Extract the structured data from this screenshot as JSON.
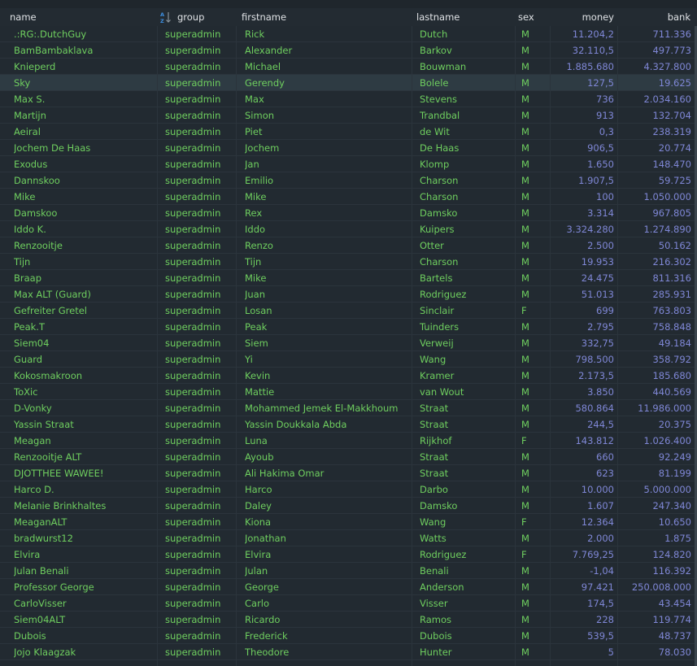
{
  "columns": {
    "name": "name",
    "group": "group",
    "firstname": "firstname",
    "lastname": "lastname",
    "sex": "sex",
    "money": "money",
    "bank": "bank"
  },
  "sort": {
    "column": "group",
    "icon": "sort-alpha-ascending-icon"
  },
  "colors": {
    "text": "#6fcf5f",
    "number": "#7f87d6",
    "background": "#222a31",
    "selected_row": "#2e3b43"
  },
  "selected_index": 3,
  "rows": [
    [
      ".:RG:.DutchGuy",
      "superadmin",
      "Rick",
      "Dutch",
      "M",
      "11.204,2",
      "711.336"
    ],
    [
      "BamBambaklava",
      "superadmin",
      "Alexander",
      "Barkov",
      "M",
      "32.110,5",
      "497.773"
    ],
    [
      "Knieperd",
      "superadmin",
      "Michael",
      "Bouwman",
      "M",
      "1.885.680",
      "4.327.800"
    ],
    [
      "Sky",
      "superadmin",
      "Gerendy",
      "Bolele",
      "M",
      "127,5",
      "19.625"
    ],
    [
      "Max S.",
      "superadmin",
      "Max",
      "Stevens",
      "M",
      "736",
      "2.034.160"
    ],
    [
      "Martijn",
      "superadmin",
      "Simon",
      "Trandbal",
      "M",
      "913",
      "132.704"
    ],
    [
      "Aeiral",
      "superadmin",
      "Piet",
      "de Wit",
      "M",
      "0,3",
      "238.319"
    ],
    [
      "Jochem De Haas",
      "superadmin",
      "Jochem",
      "De Haas",
      "M",
      "906,5",
      "20.774"
    ],
    [
      "Exodus",
      "superadmin",
      "Jan",
      "Klomp",
      "M",
      "1.650",
      "148.470"
    ],
    [
      "Dannskoo",
      "superadmin",
      "Emilio",
      "Charson",
      "M",
      "1.907,5",
      "59.725"
    ],
    [
      "Mike",
      "superadmin",
      "Mike",
      "Charson",
      "M",
      "100",
      "1.050.000"
    ],
    [
      "Damskoo",
      "superadmin",
      "Rex",
      "Damsko",
      "M",
      "3.314",
      "967.805"
    ],
    [
      "Iddo K.",
      "superadmin",
      "Iddo",
      "Kuipers",
      "M",
      "3.324.280",
      "1.274.890"
    ],
    [
      "Renzooitje",
      "superadmin",
      "Renzo",
      "Otter",
      "M",
      "2.500",
      "50.162"
    ],
    [
      "Tijn",
      "superadmin",
      "Tijn",
      "Charson",
      "M",
      "19.953",
      "216.302"
    ],
    [
      "Braap",
      "superadmin",
      "Mike",
      "Bartels",
      "M",
      "24.475",
      "811.316"
    ],
    [
      "Max ALT (Guard)",
      "superadmin",
      "Juan",
      "Rodriguez",
      "M",
      "51.013",
      "285.931"
    ],
    [
      "Gefreiter Gretel",
      "superadmin",
      "Losan",
      "Sinclair",
      "F",
      "699",
      "763.803"
    ],
    [
      "Peak.T",
      "superadmin",
      "Peak",
      "Tuinders",
      "M",
      "2.795",
      "758.848"
    ],
    [
      "Siem04",
      "superadmin",
      "Siem",
      "Verweij",
      "M",
      "332,75",
      "49.184"
    ],
    [
      "Guard",
      "superadmin",
      "Yi",
      "Wang",
      "M",
      "798.500",
      "358.792"
    ],
    [
      "Kokosmakroon",
      "superadmin",
      "Kevin",
      "Kramer",
      "M",
      "2.173,5",
      "185.680"
    ],
    [
      "ToXic",
      "superadmin",
      "Mattie",
      "van Wout",
      "M",
      "3.850",
      "440.569"
    ],
    [
      "D-Vonky",
      "superadmin",
      "Mohammed Jemek El-Makkhoum",
      "Straat",
      "M",
      "580.864",
      "11.986.000"
    ],
    [
      "Yassin Straat",
      "superadmin",
      "Yassin Doukkala Abda",
      "Straat",
      "M",
      "244,5",
      "20.375"
    ],
    [
      "Meagan",
      "superadmin",
      "Luna",
      "Rijkhof",
      "F",
      "143.812",
      "1.026.400"
    ],
    [
      "Renzooitje ALT",
      "superadmin",
      "Ayoub",
      "Straat",
      "M",
      "660",
      "92.249"
    ],
    [
      "DJOTTHEE WAWEE!",
      "superadmin",
      "Ali Hakima Omar",
      "Straat",
      "M",
      "623",
      "81.199"
    ],
    [
      "Harco D.",
      "superadmin",
      "Harco",
      "Darbo",
      "M",
      "10.000",
      "5.000.000"
    ],
    [
      "Melanie Brinkhaltes",
      "superadmin",
      "Daley",
      "Damsko",
      "M",
      "1.607",
      "247.340"
    ],
    [
      "MeaganALT",
      "superadmin",
      "Kiona",
      "Wang",
      "F",
      "12.364",
      "10.650"
    ],
    [
      "bradwurst12",
      "superadmin",
      "Jonathan",
      "Watts",
      "M",
      "2.000",
      "1.875"
    ],
    [
      "Elvira",
      "superadmin",
      "Elvira",
      "Rodriguez",
      "F",
      "7.769,25",
      "124.820"
    ],
    [
      "Julan Benali",
      "superadmin",
      "Julan",
      "Benali",
      "M",
      "-1,04",
      "116.392"
    ],
    [
      "Professor George",
      "superadmin",
      "George",
      "Anderson",
      "M",
      "97.421",
      "250.008.000"
    ],
    [
      "CarloVisser",
      "superadmin",
      "Carlo",
      "Visser",
      "M",
      "174,5",
      "43.454"
    ],
    [
      "Siem04ALT",
      "superadmin",
      "Ricardo",
      "Ramos",
      "M",
      "228",
      "119.774"
    ],
    [
      "Dubois",
      "superadmin",
      "Frederick",
      "Dubois",
      "M",
      "539,5",
      "48.737"
    ],
    [
      "Jojo Klaagzak",
      "superadmin",
      "Theodore",
      "Hunter",
      "M",
      "5",
      "78.030"
    ]
  ]
}
